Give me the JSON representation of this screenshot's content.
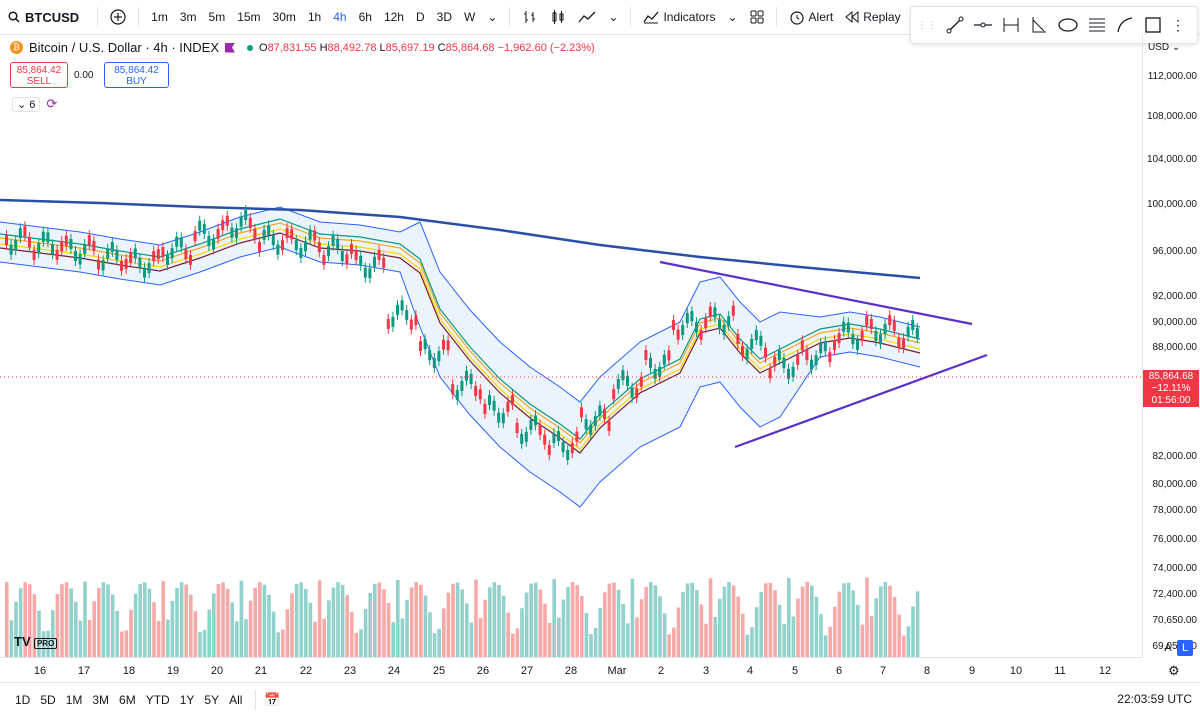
{
  "toolbar": {
    "symbol": "BTCUSD",
    "intervals": [
      "1m",
      "3m",
      "5m",
      "15m",
      "30m",
      "1h",
      "4h",
      "6h",
      "12h",
      "D",
      "3D",
      "W"
    ],
    "active_interval": "4h",
    "indicators_label": "Indicators",
    "alert_label": "Alert",
    "replay_label": "Replay"
  },
  "legend": {
    "title": "Bitcoin / U.S. Dollar · 4h · INDEX",
    "open_k": "O",
    "open": "87,831.55",
    "high_k": "H",
    "high": "88,492.78",
    "low_k": "L",
    "low": "85,697.19",
    "close_k": "C",
    "close": "85,864.68",
    "change": "−1,962.60 (−2.23%)"
  },
  "trade": {
    "sell_price": "85,864.42",
    "sell_label": "SELL",
    "spread": "0.00",
    "buy_price": "85,864.42",
    "buy_label": "BUY"
  },
  "indicators_count": "6",
  "price_axis": {
    "currency": "USD",
    "labels": [
      "112,000.00",
      "108,000.00",
      "104,000.00",
      "100,000.00",
      "96,000.00",
      "92,000.00",
      "90,000.00",
      "88,000.00",
      "82,000.00",
      "80,000.00",
      "78,000.00",
      "76,000.00",
      "74,000.00",
      "72,400.00",
      "70,650.00",
      "69,050.00"
    ],
    "current_price": "85,864.68",
    "current_change": "−12.11%",
    "countdown": "01:56:00"
  },
  "time_axis": [
    "16",
    "17",
    "18",
    "19",
    "20",
    "21",
    "22",
    "23",
    "24",
    "25",
    "26",
    "27",
    "28",
    "Mar",
    "2",
    "3",
    "4",
    "5",
    "6",
    "7",
    "8",
    "9",
    "10",
    "11",
    "12"
  ],
  "ranges": [
    "1D",
    "5D",
    "1M",
    "3M",
    "6M",
    "YTD",
    "1Y",
    "5Y",
    "All"
  ],
  "clock": "22:03:59 UTC",
  "scale_auto": "A",
  "scale_log": "L",
  "logo": "PRO",
  "colors": {
    "up": "#089981",
    "down": "#f23645",
    "accent": "#2962ff",
    "trend": "#5b2fc9",
    "ma200": "#2a4fa8"
  }
}
